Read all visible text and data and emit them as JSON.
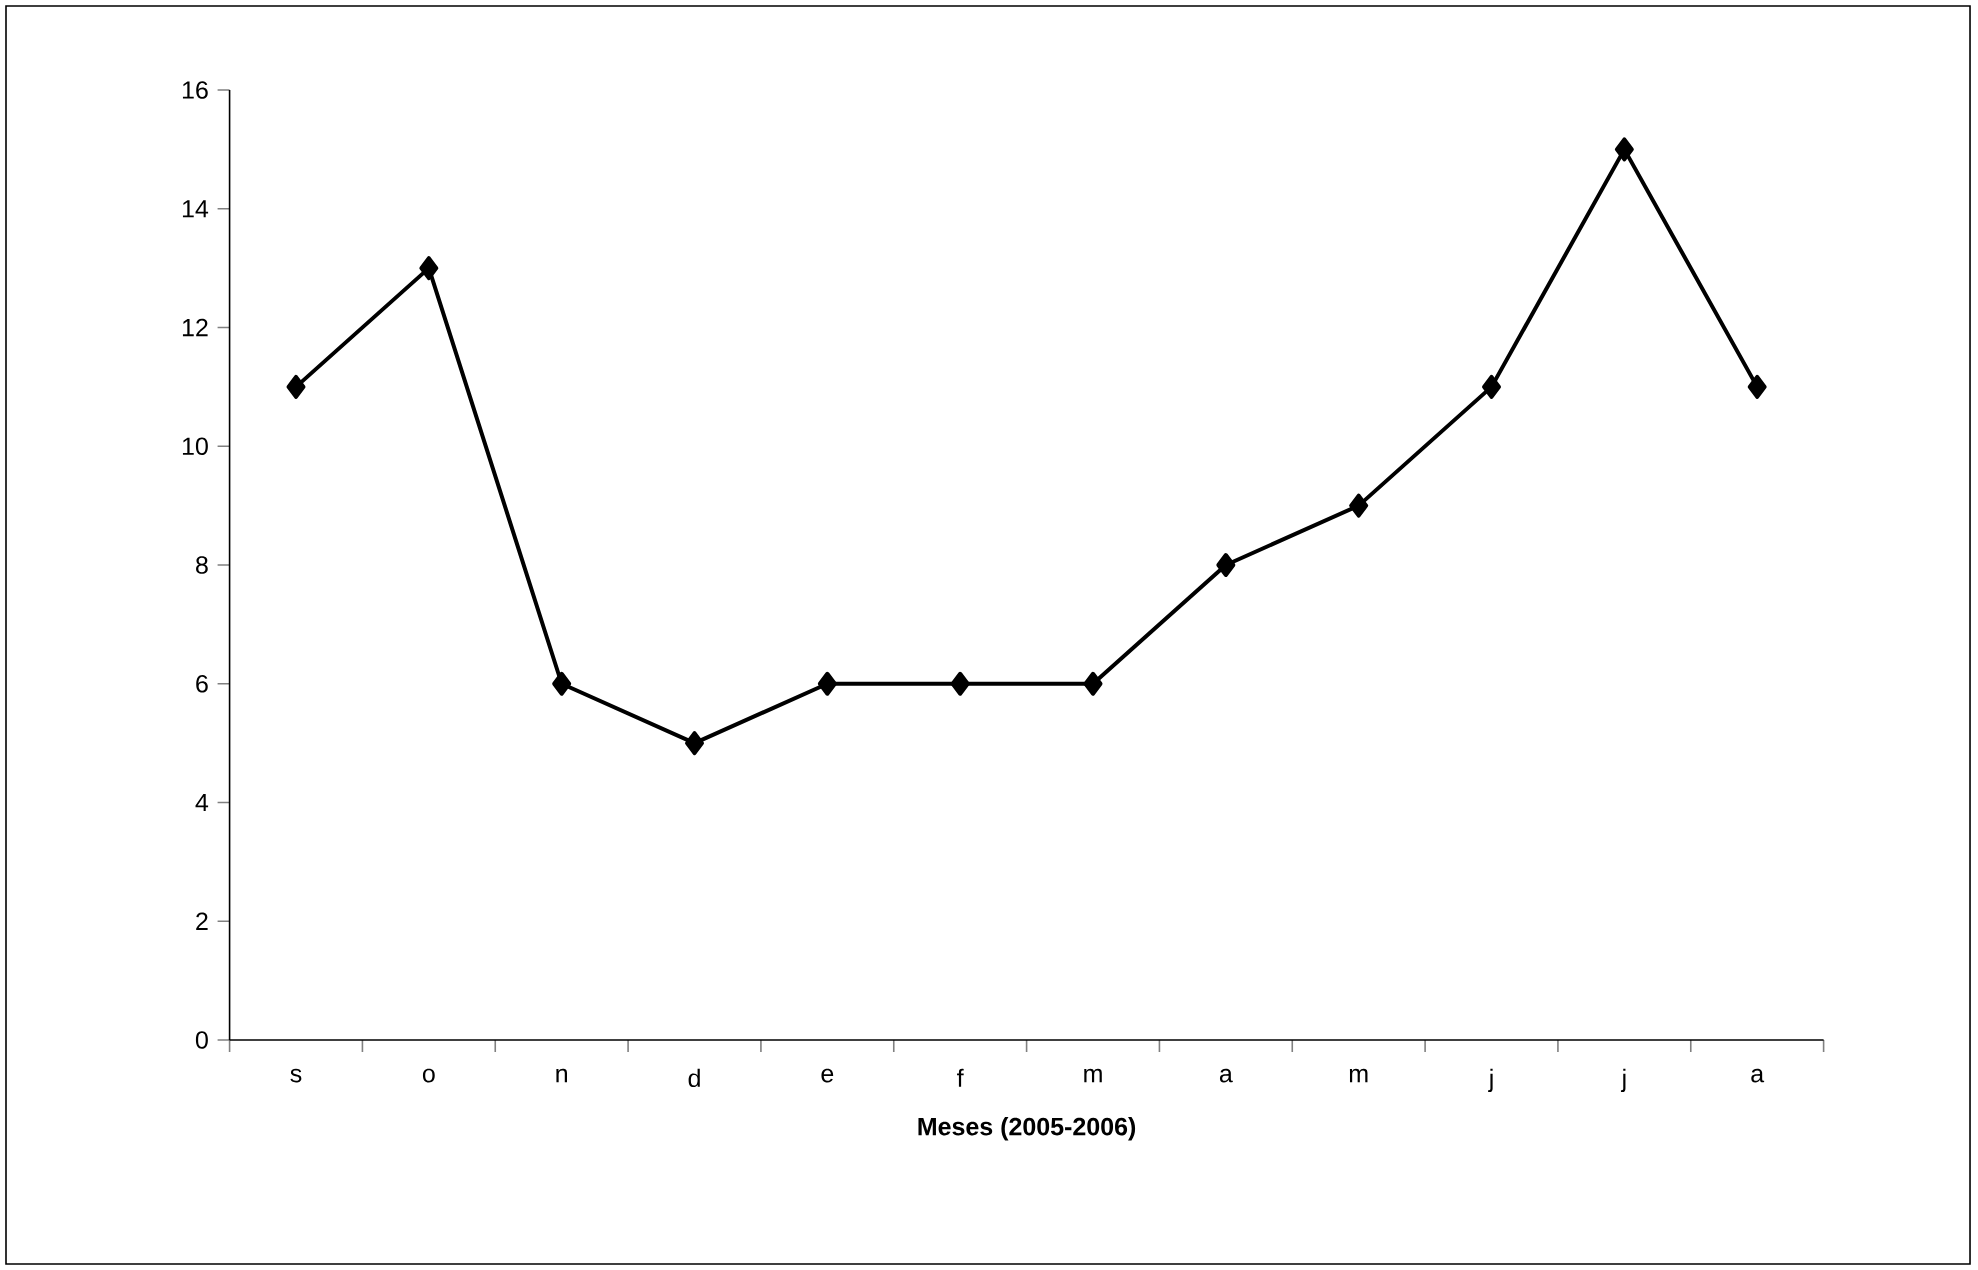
{
  "chart_data": {
    "type": "line",
    "xlabel": "Meses (2005-2006)",
    "categories": [
      "s",
      "o",
      "n",
      "d",
      "e",
      "f",
      "m",
      "a",
      "m",
      "j",
      "j",
      "a"
    ],
    "values": [
      11,
      13,
      6,
      5,
      6,
      6,
      6,
      8,
      9,
      11,
      15,
      11
    ],
    "color": "#000000",
    "marker": "diamond",
    "line_style": "solid",
    "ylim": [
      0,
      16
    ],
    "yticks": [
      0,
      2,
      4,
      6,
      8,
      10,
      12,
      14,
      16
    ]
  }
}
